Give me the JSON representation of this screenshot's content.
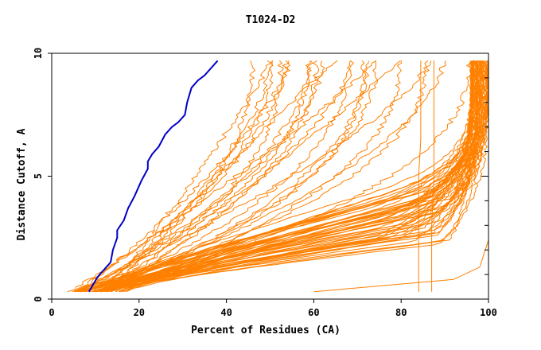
{
  "chart_data": {
    "type": "line",
    "title": "T1024-D2",
    "xlabel": "Percent of Residues (CA)",
    "ylabel": "Distance Cutoff, A",
    "xlim": [
      0,
      100
    ],
    "ylim": [
      0,
      10
    ],
    "x_ticks": [
      0,
      20,
      40,
      60,
      80,
      100
    ],
    "y_ticks": [
      0,
      5,
      10
    ],
    "x_tick_labels": [
      "0",
      "20",
      "40",
      "60",
      "80",
      "100"
    ],
    "y_tick_labels": [
      "0",
      "5",
      "10"
    ],
    "grid": false,
    "colors": {
      "models": "#ff8000",
      "highlight": "#0000c8"
    },
    "highlight_series": {
      "x": [
        8.5,
        9.5,
        10.5,
        12,
        13.5,
        14,
        15,
        15,
        16.5,
        17.5,
        19,
        20.5,
        22,
        22,
        23,
        24.5,
        26,
        27.5,
        29,
        30.5,
        31,
        32,
        33.5,
        35,
        36.5,
        38
      ],
      "y": [
        0.3,
        0.6,
        0.9,
        1.2,
        1.5,
        2.0,
        2.5,
        2.8,
        3.2,
        3.7,
        4.2,
        4.8,
        5.3,
        5.6,
        5.9,
        6.2,
        6.7,
        7.0,
        7.2,
        7.5,
        8.0,
        8.6,
        8.9,
        9.1,
        9.4,
        9.7
      ]
    },
    "special_series": [
      {
        "x": [
          60,
          76,
          92,
          98,
          100
        ],
        "y": [
          0.3,
          0.55,
          0.8,
          1.3,
          2.4
        ]
      },
      {
        "x": [
          84,
          84,
          84,
          84,
          84.5,
          84.5,
          84.5
        ],
        "y": [
          0.3,
          2.5,
          3.8,
          5.0,
          6.5,
          8.0,
          9.7
        ]
      },
      {
        "x": [
          87,
          87,
          87.5,
          87.5,
          87.5
        ],
        "y": [
          0.3,
          3.0,
          5.0,
          7.5,
          9.7
        ]
      }
    ]
  }
}
